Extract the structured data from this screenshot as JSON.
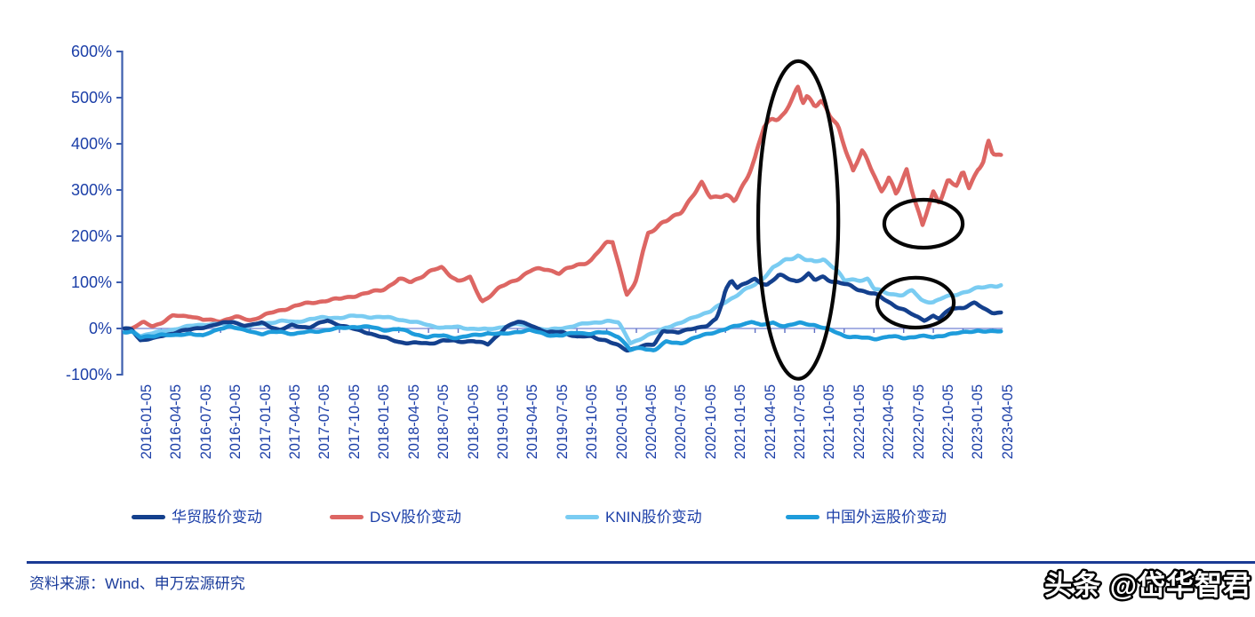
{
  "chart_data": {
    "type": "line",
    "title": "",
    "xlabel": "",
    "ylabel": "",
    "ylim": [
      -100,
      600
    ],
    "grid": false,
    "legend_position": "bottom",
    "x_label_rotation": 90,
    "y_ticks": [
      [
        600,
        "600%"
      ],
      [
        500,
        "500%"
      ],
      [
        400,
        "400%"
      ],
      [
        300,
        "300%"
      ],
      [
        200,
        "200%"
      ],
      [
        100,
        "100%"
      ],
      [
        0,
        "0%"
      ],
      [
        -100,
        "-100%"
      ]
    ],
    "categories": [
      "2016-01-05",
      "2016-04-05",
      "2016-07-05",
      "2016-10-05",
      "2017-01-05",
      "2017-04-05",
      "2017-07-05",
      "2017-10-05",
      "2018-01-05",
      "2018-04-05",
      "2018-07-05",
      "2018-10-05",
      "2019-01-05",
      "2019-04-05",
      "2019-07-05",
      "2019-10-05",
      "2020-01-05",
      "2020-04-05",
      "2020-07-05",
      "2020-10-05",
      "2021-01-05",
      "2021-04-05",
      "2021-07-05",
      "2021-10-05",
      "2022-01-05",
      "2022-04-05",
      "2022-07-05",
      "2022-10-05",
      "2023-01-05",
      "2023-04-05"
    ],
    "series": [
      {
        "key": "huamao",
        "name": "华贸股价变动",
        "color": "#14408D",
        "points": [
          [
            0,
            -3
          ],
          [
            0.3,
            -25
          ],
          [
            0.8,
            -20
          ],
          [
            1,
            -15
          ],
          [
            1.6,
            -4
          ],
          [
            2,
            -2
          ],
          [
            2.5,
            3
          ],
          [
            3,
            8
          ],
          [
            3.4,
            13
          ],
          [
            3.8,
            6
          ],
          [
            4,
            6
          ],
          [
            4.4,
            14
          ],
          [
            5,
            -2
          ],
          [
            5.4,
            8
          ],
          [
            6,
            2
          ],
          [
            6.6,
            15
          ],
          [
            7,
            6
          ],
          [
            7.6,
            -4
          ],
          [
            8,
            -8
          ],
          [
            8.5,
            -18
          ],
          [
            9,
            -27
          ],
          [
            9.5,
            -32
          ],
          [
            10,
            -35
          ],
          [
            10.5,
            -28
          ],
          [
            11,
            -30
          ],
          [
            11.5,
            -25
          ],
          [
            12,
            -33
          ],
          [
            12.6,
            5
          ],
          [
            13,
            14
          ],
          [
            13.4,
            8
          ],
          [
            14,
            -12
          ],
          [
            14.5,
            -8
          ],
          [
            15,
            -18
          ],
          [
            15.5,
            -15
          ],
          [
            16,
            -24
          ],
          [
            16.7,
            -47
          ],
          [
            17,
            -42
          ],
          [
            17.6,
            -38
          ],
          [
            17.9,
            -5
          ],
          [
            18.4,
            -10
          ],
          [
            19,
            4
          ],
          [
            19.4,
            8
          ],
          [
            19.7,
            22
          ],
          [
            19.9,
            60
          ],
          [
            20,
            85
          ],
          [
            20.2,
            108
          ],
          [
            20.4,
            88
          ],
          [
            20.7,
            95
          ],
          [
            21,
            103
          ],
          [
            21.4,
            92
          ],
          [
            21.8,
            112
          ],
          [
            22,
            110
          ],
          [
            22.4,
            105
          ],
          [
            22.8,
            120
          ],
          [
            23,
            107
          ],
          [
            23.3,
            116
          ],
          [
            23.6,
            105
          ],
          [
            24,
            95
          ],
          [
            24.5,
            82
          ],
          [
            25,
            72
          ],
          [
            25.5,
            56
          ],
          [
            26,
            42
          ],
          [
            26.4,
            28
          ],
          [
            26.7,
            21
          ],
          [
            27,
            30
          ],
          [
            27.2,
            22
          ],
          [
            27.6,
            43
          ],
          [
            28,
            44
          ],
          [
            28.4,
            52
          ],
          [
            28.7,
            40
          ],
          [
            29,
            34
          ]
        ]
      },
      {
        "key": "dsv",
        "name": "DSV股价变动",
        "color": "#DD6663",
        "points": [
          [
            0,
            0
          ],
          [
            0.4,
            15
          ],
          [
            0.7,
            8
          ],
          [
            1,
            14
          ],
          [
            1.4,
            28
          ],
          [
            2,
            26
          ],
          [
            2.4,
            16
          ],
          [
            3,
            15
          ],
          [
            3.5,
            25
          ],
          [
            4,
            20
          ],
          [
            4.5,
            32
          ],
          [
            5,
            40
          ],
          [
            5.5,
            48
          ],
          [
            6,
            52
          ],
          [
            6.5,
            58
          ],
          [
            7,
            63
          ],
          [
            7.4,
            72
          ],
          [
            8,
            80
          ],
          [
            8.5,
            88
          ],
          [
            9,
            105
          ],
          [
            9.4,
            98
          ],
          [
            10,
            118
          ],
          [
            10.45,
            130
          ],
          [
            11,
            105
          ],
          [
            11.4,
            112
          ],
          [
            11.8,
            62
          ],
          [
            12,
            70
          ],
          [
            12.4,
            88
          ],
          [
            13,
            106
          ],
          [
            13.5,
            122
          ],
          [
            14,
            128
          ],
          [
            14.4,
            120
          ],
          [
            15,
            142
          ],
          [
            15.5,
            152
          ],
          [
            16,
            186
          ],
          [
            16.2,
            190
          ],
          [
            16.67,
            70
          ],
          [
            16.9,
            85
          ],
          [
            17,
            100
          ],
          [
            17.2,
            160
          ],
          [
            17.4,
            205
          ],
          [
            18,
            231
          ],
          [
            18.5,
            260
          ],
          [
            19,
            300
          ],
          [
            19.2,
            317
          ],
          [
            19.5,
            290
          ],
          [
            20,
            285
          ],
          [
            20.3,
            268
          ],
          [
            20.7,
            320
          ],
          [
            21,
            365
          ],
          [
            21.3,
            430
          ],
          [
            21.6,
            455
          ],
          [
            22,
            475
          ],
          [
            22.2,
            500
          ],
          [
            22.45,
            525
          ],
          [
            22.6,
            495
          ],
          [
            22.75,
            515
          ],
          [
            23,
            492
          ],
          [
            23.2,
            498
          ],
          [
            23.5,
            455
          ],
          [
            23.8,
            430
          ],
          [
            24,
            395
          ],
          [
            24.3,
            335
          ],
          [
            24.6,
            375
          ],
          [
            25,
            335
          ],
          [
            25.25,
            300
          ],
          [
            25.5,
            330
          ],
          [
            25.75,
            292
          ],
          [
            26.1,
            352
          ],
          [
            26.64,
            225
          ],
          [
            27,
            292
          ],
          [
            27.2,
            272
          ],
          [
            27.5,
            320
          ],
          [
            27.8,
            300
          ],
          [
            28,
            330
          ],
          [
            28.2,
            300
          ],
          [
            28.5,
            345
          ],
          [
            28.7,
            365
          ],
          [
            28.85,
            405
          ],
          [
            29,
            378
          ]
        ]
      },
      {
        "key": "knin",
        "name": "KNIN股价变动",
        "color": "#7ACCF2",
        "points": [
          [
            0,
            -2
          ],
          [
            0.3,
            -13
          ],
          [
            1,
            -7
          ],
          [
            1.5,
            -2
          ],
          [
            2,
            3
          ],
          [
            2.5,
            8
          ],
          [
            3,
            10
          ],
          [
            3.5,
            4
          ],
          [
            4,
            7
          ],
          [
            4.5,
            12
          ],
          [
            5,
            15
          ],
          [
            5.5,
            11
          ],
          [
            6,
            19
          ],
          [
            6.5,
            23
          ],
          [
            7,
            26
          ],
          [
            7.5,
            29
          ],
          [
            8,
            27
          ],
          [
            8.5,
            23
          ],
          [
            9,
            18
          ],
          [
            9.5,
            12
          ],
          [
            10,
            7
          ],
          [
            10.5,
            3
          ],
          [
            11,
            5
          ],
          [
            11.5,
            1
          ],
          [
            12,
            -3
          ],
          [
            12.5,
            2
          ],
          [
            13,
            7
          ],
          [
            13.5,
            2
          ],
          [
            14,
            -3
          ],
          [
            14.5,
            3
          ],
          [
            15,
            9
          ],
          [
            15.5,
            12
          ],
          [
            16,
            15
          ],
          [
            16.4,
            10
          ],
          [
            16.8,
            -32
          ],
          [
            17.1,
            -25
          ],
          [
            17.5,
            -12
          ],
          [
            18,
            5
          ],
          [
            18.5,
            13
          ],
          [
            19,
            28
          ],
          [
            19.5,
            35
          ],
          [
            20,
            55
          ],
          [
            20.5,
            75
          ],
          [
            21,
            95
          ],
          [
            21.6,
            135
          ],
          [
            22,
            150
          ],
          [
            22.45,
            162
          ],
          [
            22.7,
            150
          ],
          [
            23,
            140
          ],
          [
            23.3,
            147
          ],
          [
            23.7,
            128
          ],
          [
            24,
            100
          ],
          [
            24.4,
            104
          ],
          [
            24.8,
            110
          ],
          [
            25,
            88
          ],
          [
            25.4,
            80
          ],
          [
            26,
            75
          ],
          [
            26.3,
            82
          ],
          [
            26.6,
            60
          ],
          [
            27,
            55
          ],
          [
            27.3,
            62
          ],
          [
            27.6,
            68
          ],
          [
            28,
            78
          ],
          [
            28.5,
            88
          ],
          [
            29,
            97
          ]
        ]
      },
      {
        "key": "sinotrans",
        "name": "中国外运股价变动",
        "color": "#1E9CDB",
        "points": [
          [
            0,
            -5
          ],
          [
            0.3,
            -20
          ],
          [
            0.8,
            -16
          ],
          [
            1,
            -14
          ],
          [
            1.4,
            -19
          ],
          [
            2,
            -11
          ],
          [
            2.4,
            -16
          ],
          [
            3,
            3
          ],
          [
            3.3,
            7
          ],
          [
            3.7,
            -2
          ],
          [
            4,
            -5
          ],
          [
            4.4,
            -13
          ],
          [
            5,
            -9
          ],
          [
            5.5,
            -13
          ],
          [
            6,
            -7
          ],
          [
            6.5,
            -2
          ],
          [
            7,
            2
          ],
          [
            7.5,
            5
          ],
          [
            8,
            2
          ],
          [
            8.5,
            -5
          ],
          [
            9,
            -3
          ],
          [
            9.5,
            -11
          ],
          [
            10,
            -17
          ],
          [
            10.5,
            -13
          ],
          [
            11,
            -19
          ],
          [
            11.5,
            -16
          ],
          [
            12,
            -12
          ],
          [
            12.5,
            -15
          ],
          [
            13,
            -7
          ],
          [
            13.4,
            -3
          ],
          [
            14,
            -11
          ],
          [
            14.5,
            -14
          ],
          [
            15,
            -9
          ],
          [
            15.5,
            -13
          ],
          [
            16,
            -11
          ],
          [
            16.4,
            -18
          ],
          [
            16.8,
            -47
          ],
          [
            17.2,
            -40
          ],
          [
            17.6,
            -44
          ],
          [
            18,
            -28
          ],
          [
            18.5,
            -31
          ],
          [
            19,
            -22
          ],
          [
            19.5,
            -12
          ],
          [
            20,
            -3
          ],
          [
            20.5,
            8
          ],
          [
            20.9,
            18
          ],
          [
            21.2,
            8
          ],
          [
            21.6,
            14
          ],
          [
            22,
            6
          ],
          [
            22.5,
            10
          ],
          [
            23,
            6
          ],
          [
            23.5,
            -5
          ],
          [
            24,
            -15
          ],
          [
            24.5,
            -18
          ],
          [
            25,
            -20
          ],
          [
            25.5,
            -16
          ],
          [
            26,
            -22
          ],
          [
            26.5,
            -18
          ],
          [
            27,
            -22
          ],
          [
            27.5,
            -12
          ],
          [
            28,
            -8
          ],
          [
            28.5,
            -2
          ],
          [
            29,
            -6
          ]
        ]
      }
    ],
    "annotations": [
      {
        "key": "ellipse-2021-peak",
        "shape": "ellipse",
        "x_index": 22.45,
        "y_pct": 235,
        "rx_index": 1.35,
        "ry_pct": 344
      },
      {
        "key": "ellipse-dsv-2022-dip",
        "shape": "ellipse",
        "x_index": 26.67,
        "y_pct": 227,
        "rx_index": 1.32,
        "ry_pct": 52
      },
      {
        "key": "ellipse-knin-2022-dip",
        "shape": "ellipse",
        "x_index": 26.4,
        "y_pct": 56,
        "rx_index": 1.29,
        "ry_pct": 54
      }
    ],
    "annotation_color": "#060606"
  },
  "colors": {
    "axis": "#3D5EAE",
    "zero_line": "#8A97DB",
    "zero_tick": "#5E6FC4",
    "tick_label": "#1C3FA8",
    "footer_rule": "#1A3A94",
    "footer_text": "#1B3C9B"
  },
  "footer": {
    "source_label": "资料来源：Wind、申万宏源研究"
  },
  "watermark": {
    "text": "头条 @岱华智君"
  }
}
